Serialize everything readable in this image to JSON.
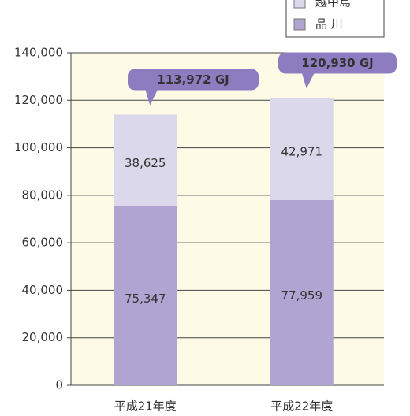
{
  "chart_data": {
    "type": "stacked-bar",
    "categories": [
      "平成21年度",
      "平成22年度"
    ],
    "series": [
      {
        "name": "品 川",
        "color": "#b0a4d2",
        "values": [
          75347,
          77959
        ],
        "value_labels": [
          "75,347",
          "77,959"
        ]
      },
      {
        "name": "越中島",
        "color": "#dcd8ec",
        "values": [
          38625,
          42971
        ],
        "value_labels": [
          "38,625",
          "42,971"
        ]
      }
    ],
    "annotations": [
      "113,972 GJ",
      "120,930 GJ"
    ],
    "ylim": [
      0,
      140000
    ],
    "yticks": [
      0,
      {
        "value": 20000,
        "label": "20,000"
      },
      {
        "value": 40000,
        "label": "40,000"
      },
      {
        "value": 60000,
        "label": "60,000"
      },
      {
        "value": 80000,
        "label": "80,000"
      },
      {
        "value": 100000,
        "label": "100,000"
      },
      {
        "value": 120000,
        "label": "120,000"
      },
      {
        "value": 140000,
        "label": "140,000"
      }
    ],
    "grid": true,
    "legend": "top-right",
    "background": "#fdfbe6"
  }
}
